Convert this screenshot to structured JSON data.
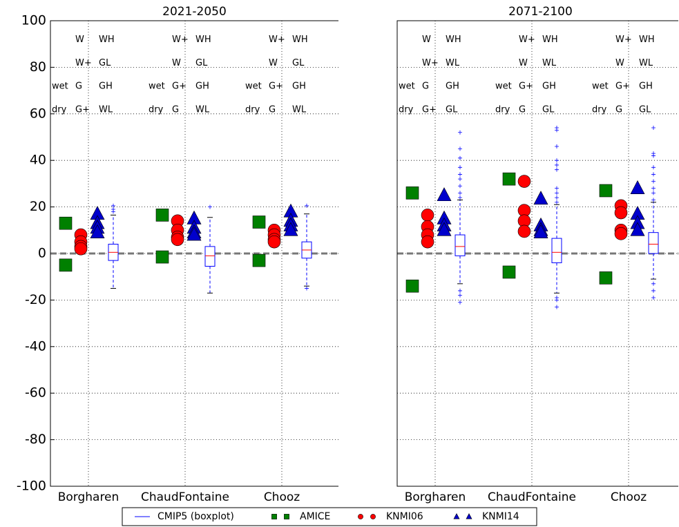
{
  "chart_data": [
    {
      "type": "box",
      "title": "2021-2050",
      "categories": [
        "Borgharen",
        "ChaudFontaine",
        "Chooz"
      ],
      "ylim": [
        -100,
        100
      ],
      "yticks": [
        -100,
        -80,
        -60,
        -40,
        -20,
        0,
        20,
        40,
        60,
        80,
        100
      ],
      "grid": true,
      "reference_line": 0,
      "legend": "lower center",
      "series": [
        {
          "name": "CMIP5 (boxplot)",
          "color": "#0000ff",
          "median_color": "#ff0000",
          "boxes": [
            {
              "whislo": -15,
              "q1": -3,
              "median": 0.5,
              "q3": 4,
              "whishi": 16.5,
              "fliers": [
                18,
                19,
                20.5
              ]
            },
            {
              "whislo": -17,
              "q1": -5.5,
              "median": -1,
              "q3": 3,
              "whishi": 15.5,
              "fliers": [
                20
              ]
            },
            {
              "whislo": -14,
              "q1": -2,
              "median": 1.5,
              "q3": 5,
              "whishi": 17,
              "fliers": [
                20.5,
                -15
              ]
            }
          ]
        },
        {
          "name": "AMICE",
          "color": "#008000",
          "marker": "square",
          "values": [
            [
              13,
              -5
            ],
            [
              16.5,
              -1.5
            ],
            [
              13.5,
              -3
            ]
          ]
        },
        {
          "name": "KNMI06",
          "color": "#ff0000",
          "marker": "circle",
          "values": [
            [
              8,
              5,
              3,
              2
            ],
            [
              14,
              10,
              7,
              6
            ],
            [
              10,
              8,
              6,
              5
            ]
          ]
        },
        {
          "name": "KNMI14",
          "color": "#0000cc",
          "marker": "triangle",
          "values": [
            [
              17,
              13,
              11,
              9
            ],
            [
              15,
              11,
              9,
              8
            ],
            [
              18,
              14,
              12,
              10
            ]
          ]
        }
      ],
      "scenario_labels": [
        {
          "amice": [
            "wet",
            "dry"
          ],
          "knmi06": [
            "W",
            "W+",
            "G",
            "G+"
          ],
          "knmi14": [
            "WH",
            "GL",
            "GH",
            "WL"
          ]
        },
        {
          "amice": [
            "wet",
            "dry"
          ],
          "knmi06": [
            "W+",
            "W",
            "G+",
            "G"
          ],
          "knmi14": [
            "WH",
            "GL",
            "GH",
            "WL"
          ]
        },
        {
          "amice": [
            "wet",
            "dry"
          ],
          "knmi06": [
            "W+",
            "W",
            "G+",
            "G"
          ],
          "knmi14": [
            "WH",
            "GL",
            "GH",
            "WL"
          ]
        }
      ]
    },
    {
      "type": "box",
      "title": "2071-2100",
      "categories": [
        "Borgharen",
        "ChaudFontaine",
        "Chooz"
      ],
      "ylim": [
        -100,
        100
      ],
      "grid": true,
      "reference_line": 0,
      "series": [
        {
          "color": "#0000ff",
          "median_color": "#ff0000",
          "boxes": [
            {
              "whislo": -13,
              "q1": -1,
              "median": 3,
              "q3": 8,
              "whishi": 23,
              "fliers": [
                52,
                45,
                41,
                37,
                34,
                32,
                29,
                26,
                24,
                -16,
                -18,
                -21
              ]
            },
            {
              "whislo": -17,
              "q1": -4,
              "median": 0.5,
              "q3": 6.5,
              "whishi": 21,
              "fliers": [
                54,
                53,
                46,
                40,
                38,
                36,
                28,
                26,
                24,
                22,
                -19,
                -20,
                -23
              ]
            },
            {
              "whislo": -11,
              "q1": 0,
              "median": 4,
              "q3": 9,
              "whishi": 22,
              "fliers": [
                54,
                43,
                42,
                37,
                34,
                31,
                28,
                26,
                23,
                -13,
                -16,
                -19
              ]
            }
          ]
        },
        {
          "color": "#008000",
          "marker": "square",
          "values": [
            [
              26,
              -14
            ],
            [
              32,
              -8
            ],
            [
              27,
              -10.5
            ]
          ]
        },
        {
          "color": "#ff0000",
          "marker": "circle",
          "values": [
            [
              16.5,
              11.5,
              8,
              5
            ],
            [
              31,
              18.5,
              14,
              9.5
            ],
            [
              20.5,
              17.5,
              10,
              8.5
            ]
          ]
        },
        {
          "color": "#0000cc",
          "marker": "triangle",
          "values": [
            [
              25,
              15,
              12,
              10
            ],
            [
              23.5,
              12,
              10,
              9
            ],
            [
              28,
              17,
              13,
              10
            ]
          ]
        }
      ],
      "scenario_labels": [
        {
          "amice": [
            "wet",
            "dry"
          ],
          "knmi06": [
            "W",
            "W+",
            "G",
            "G+"
          ],
          "knmi14": [
            "WH",
            "WL",
            "GH",
            "GL"
          ]
        },
        {
          "amice": [
            "wet",
            "dry"
          ],
          "knmi06": [
            "W+",
            "W",
            "G+",
            "G"
          ],
          "knmi14": [
            "WH",
            "WL",
            "GH",
            "GL"
          ]
        },
        {
          "amice": [
            "wet",
            "dry"
          ],
          "knmi06": [
            "W+",
            "W",
            "G+",
            "G"
          ],
          "knmi14": [
            "WH",
            "WL",
            "GH",
            "GL"
          ]
        }
      ]
    }
  ]
}
